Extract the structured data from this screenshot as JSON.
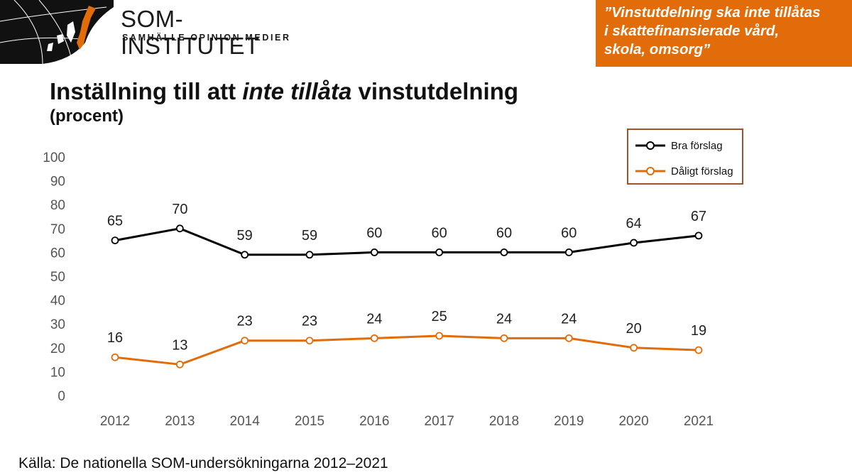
{
  "logo": {
    "name": "SOM-INSTITUTET",
    "tagline": "SAMHÄLLE  OPINION  MEDIER"
  },
  "quote": {
    "lines": [
      "”Vinstutdelning ska inte tillåtas",
      "i skattefinansierade vård,",
      "skola, omsorg”"
    ]
  },
  "heading": {
    "title_before": "Inställning till att ",
    "title_italic": "inte tillåta",
    "title_after": " vinstutdelning",
    "subtitle": "(procent)"
  },
  "source": "Källa: De nationella SOM-undersökningarna 2012–2021",
  "colors": {
    "accent": "#e36c0a",
    "bra": "#000000",
    "daligt": "#e36c0a",
    "legend_border": "#a0522d"
  },
  "chart_data": {
    "type": "line",
    "categories": [
      "2012",
      "2013",
      "2014",
      "2015",
      "2016",
      "2017",
      "2018",
      "2019",
      "2020",
      "2021"
    ],
    "series": [
      {
        "name": "Bra förslag",
        "values": [
          65,
          70,
          59,
          59,
          60,
          60,
          60,
          60,
          64,
          67
        ],
        "color": "#000000"
      },
      {
        "name": "Dåligt förslag",
        "values": [
          16,
          13,
          23,
          23,
          24,
          25,
          24,
          24,
          20,
          19
        ],
        "color": "#e36c0a"
      }
    ],
    "ylim": [
      0,
      100
    ],
    "yticks": [
      0,
      10,
      20,
      30,
      40,
      50,
      60,
      70,
      80,
      90,
      100
    ],
    "grid": false,
    "legend": "top-right",
    "data_labels": true
  }
}
